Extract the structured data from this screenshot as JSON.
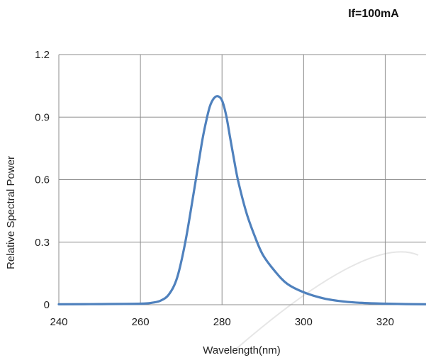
{
  "chart_data": {
    "type": "line",
    "title": "",
    "annotation": "If=100mA",
    "xlabel": "Wavelength(nm)",
    "ylabel": "Relative Spectral Power",
    "xlim": [
      240,
      330
    ],
    "ylim": [
      0,
      1.2
    ],
    "xticks": [
      240,
      260,
      280,
      300,
      320
    ],
    "yticks": [
      0,
      0.3,
      0.6,
      0.9,
      1.2
    ],
    "xtick_labels": [
      "240",
      "260",
      "280",
      "300",
      "320"
    ],
    "ytick_labels": [
      "0",
      "0.3",
      "0.6",
      "0.9",
      "1.2"
    ],
    "grid": true,
    "series": [
      {
        "color": "#4f81bd",
        "x": [
          240,
          250,
          260,
          263,
          265,
          267,
          269,
          271,
          273,
          275,
          276,
          277,
          278,
          279,
          280,
          281,
          282,
          283,
          284,
          286,
          288,
          290,
          293,
          296,
          300,
          305,
          310,
          315,
          320,
          325,
          330
        ],
        "y": [
          0.002,
          0.003,
          0.005,
          0.01,
          0.02,
          0.05,
          0.13,
          0.3,
          0.53,
          0.77,
          0.87,
          0.95,
          0.99,
          1.0,
          0.98,
          0.91,
          0.8,
          0.69,
          0.59,
          0.44,
          0.33,
          0.24,
          0.16,
          0.1,
          0.06,
          0.03,
          0.015,
          0.008,
          0.005,
          0.003,
          0.002
        ]
      }
    ]
  },
  "colors": {
    "grid": "#8c8c8c",
    "line": "#4f81bd",
    "watermark": "#e6e6e6"
  }
}
